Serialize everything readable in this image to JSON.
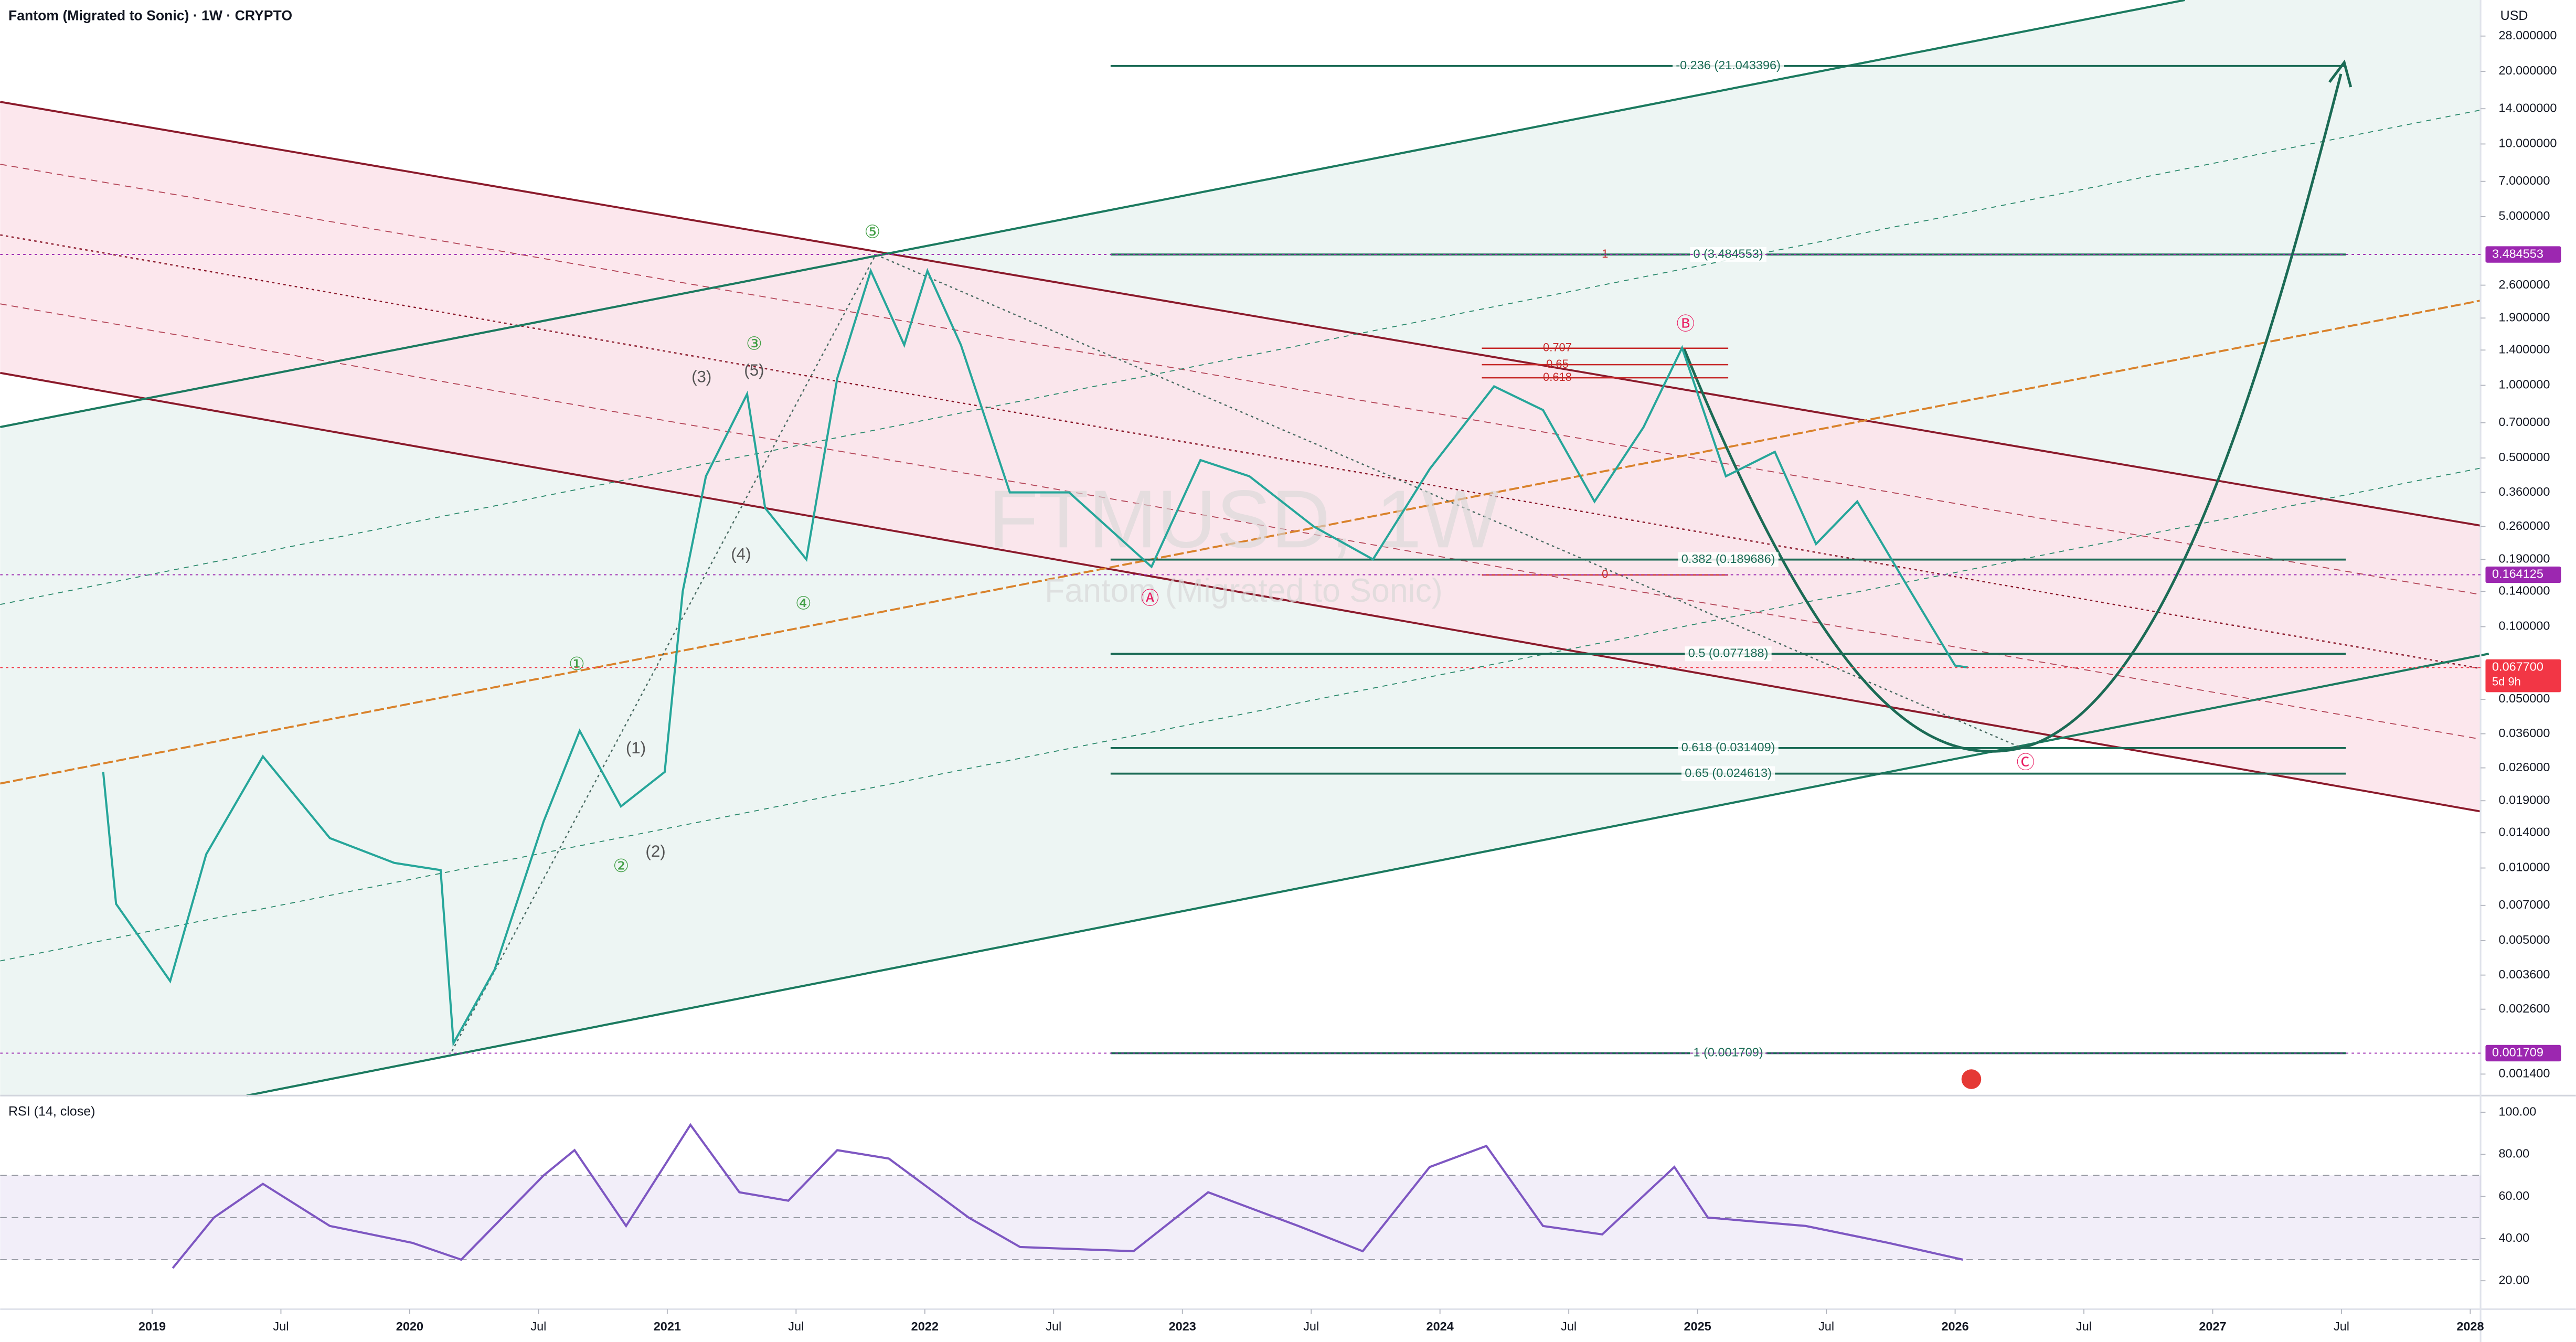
{
  "chart_data": [
    {
      "type": "line",
      "title": "Fantom (Migrated to Sonic) · 1W · CRYPTO",
      "y_label": "USD",
      "log_y": true,
      "watermark": "FTMUSD, 1W",
      "watermark_subtitle": "Fantom (Migrated to Sonic)",
      "xlim": [
        2018.41,
        2028.04
      ],
      "ylim": [
        0.00114,
        39.5
      ],
      "xticks": [
        {
          "value": 2019,
          "label": "2019"
        },
        {
          "value": 2019.5,
          "label": "Jul"
        },
        {
          "value": 2020,
          "label": "2020"
        },
        {
          "value": 2020.5,
          "label": "Jul"
        },
        {
          "value": 2021,
          "label": "2021"
        },
        {
          "value": 2021.5,
          "label": "Jul"
        },
        {
          "value": 2022,
          "label": "2022"
        },
        {
          "value": 2022.5,
          "label": "Jul"
        },
        {
          "value": 2023,
          "label": "2023"
        },
        {
          "value": 2023.5,
          "label": "Jul"
        },
        {
          "value": 2024,
          "label": "2024"
        },
        {
          "value": 2024.5,
          "label": "Jul"
        },
        {
          "value": 2025,
          "label": "2025"
        },
        {
          "value": 2025.5,
          "label": "Jul"
        },
        {
          "value": 2026,
          "label": "2026"
        },
        {
          "value": 2026.5,
          "label": "Jul"
        },
        {
          "value": 2027,
          "label": "2027"
        },
        {
          "value": 2027.5,
          "label": "Jul"
        },
        {
          "value": 2028,
          "label": "2028"
        }
      ],
      "yticks": [
        {
          "value": 28,
          "label": "28.000000"
        },
        {
          "value": 20,
          "label": "20.000000"
        },
        {
          "value": 14,
          "label": "14.000000"
        },
        {
          "value": 10,
          "label": "10.000000"
        },
        {
          "value": 7,
          "label": "7.000000"
        },
        {
          "value": 5,
          "label": "5.000000"
        },
        {
          "value": 2.6,
          "label": "2.600000"
        },
        {
          "value": 1.9,
          "label": "1.900000"
        },
        {
          "value": 1.4,
          "label": "1.400000"
        },
        {
          "value": 1,
          "label": "1.000000"
        },
        {
          "value": 0.7,
          "label": "0.700000"
        },
        {
          "value": 0.5,
          "label": "0.500000"
        },
        {
          "value": 0.36,
          "label": "0.360000"
        },
        {
          "value": 0.26,
          "label": "0.260000"
        },
        {
          "value": 0.19,
          "label": "0.190000"
        },
        {
          "value": 0.14,
          "label": "0.140000"
        },
        {
          "value": 0.1,
          "label": "0.100000"
        },
        {
          "value": 0.05,
          "label": "0.050000"
        },
        {
          "value": 0.036,
          "label": "0.036000"
        },
        {
          "value": 0.026,
          "label": "0.026000"
        },
        {
          "value": 0.019,
          "label": "0.019000"
        },
        {
          "value": 0.014,
          "label": "0.014000"
        },
        {
          "value": 0.01,
          "label": "0.010000"
        },
        {
          "value": 0.007,
          "label": "0.007000"
        },
        {
          "value": 0.005,
          "label": "0.005000"
        },
        {
          "value": 0.0036,
          "label": "0.003600"
        },
        {
          "value": 0.0026,
          "label": "0.002600"
        },
        {
          "value": 0.0014,
          "label": "0.001400"
        }
      ],
      "x": [
        2018.81,
        2018.86,
        2019.07,
        2019.21,
        2019.43,
        2019.69,
        2019.94,
        2020.12,
        2020.17,
        2020.33,
        2020.52,
        2020.66,
        2020.82,
        2020.99,
        2021.06,
        2021.15,
        2021.31,
        2021.38,
        2021.54,
        2021.66,
        2021.79,
        2021.92,
        2022.01,
        2022.14,
        2022.33,
        2022.56,
        2022.88,
        2023.07,
        2023.26,
        2023.51,
        2023.74,
        2023.96,
        2024.21,
        2024.4,
        2024.6,
        2024.79,
        2024.94,
        2025.11,
        2025.3,
        2025.46,
        2025.62,
        2025.81,
        2026.0,
        2026.05
      ],
      "series": [
        {
          "name": "FTMUSD",
          "color": "#26a69a",
          "values": [
            0.025,
            0.0071,
            0.0034,
            0.0114,
            0.029,
            0.0133,
            0.0105,
            0.0098,
            0.00188,
            0.0038,
            0.0156,
            0.037,
            0.018,
            0.025,
            0.14,
            0.42,
            0.92,
            0.31,
            0.19,
            1.07,
            2.98,
            1.47,
            2.98,
            1.47,
            0.36,
            0.36,
            0.177,
            0.49,
            0.42,
            0.26,
            0.19,
            0.45,
            0.99,
            0.79,
            0.33,
            0.67,
            1.43,
            0.42,
            0.53,
            0.22,
            0.33,
            0.15,
            0.069,
            0.0677
          ]
        }
      ],
      "fib_levels": [
        {
          "label": "-0.236 (21.043396)",
          "value": 21.043396
        },
        {
          "label": "0 (3.484553)",
          "value": 3.484553
        },
        {
          "label": "0.382 (0.189686)",
          "value": 0.189686
        },
        {
          "label": "0.5 (0.077188)",
          "value": 0.077188
        },
        {
          "label": "0.618 (0.031409)",
          "value": 0.031409
        },
        {
          "label": "0.65 (0.024613)",
          "value": 0.024613
        },
        {
          "label": "1 (0.001709)",
          "value": 0.001709
        }
      ],
      "small_fib_labels": [
        "0.707",
        "0.65",
        "0.618",
        "1",
        "0"
      ],
      "price_labels": [
        {
          "value": 3.484553,
          "label": "3.484553",
          "color": "#9c27b0"
        },
        {
          "value": 0.164125,
          "label": "0.164125",
          "color": "#9c27b0"
        },
        {
          "value": 0.0677,
          "label": "0.067700",
          "color": "#f23645"
        },
        {
          "value": 0.001709,
          "label": "0.001709",
          "color": "#9c27b0"
        }
      ],
      "countdown": "5d 9h",
      "wave_labels": [
        "⑤",
        "③",
        "①",
        "②",
        "④",
        "(1)",
        "(2)",
        "(3)",
        "(4)",
        "(5)",
        "Ⓐ",
        "Ⓑ",
        "Ⓒ"
      ]
    },
    {
      "type": "line",
      "title": "RSI (14, close)",
      "xlim": [
        2018.41,
        2028.04
      ],
      "ylim": [
        6.5,
        107.9
      ],
      "yticks": [
        {
          "value": 100,
          "label": "100.00"
        },
        {
          "value": 80,
          "label": "80.00"
        },
        {
          "value": 60,
          "label": "60.00"
        },
        {
          "value": 40,
          "label": "40.00"
        },
        {
          "value": 20,
          "label": "20.00"
        }
      ],
      "levels": [
        70,
        50,
        30
      ],
      "x": [
        2019.08,
        2019.24,
        2019.43,
        2019.69,
        2020.01,
        2020.2,
        2020.52,
        2020.64,
        2020.84,
        2021.09,
        2021.28,
        2021.47,
        2021.66,
        2021.86,
        2022.17,
        2022.37,
        2022.81,
        2023.1,
        2023.45,
        2023.7,
        2023.96,
        2024.18,
        2024.4,
        2024.63,
        2024.91,
        2025.04,
        2025.42,
        2025.74,
        2026.03
      ],
      "series": [
        {
          "name": "RSI",
          "color": "#7e57c2",
          "values": [
            26,
            50,
            66,
            46,
            38,
            30,
            70,
            82,
            46,
            94,
            62,
            58,
            82,
            78,
            50,
            36,
            34,
            62,
            46,
            34,
            74,
            84,
            46,
            42,
            74,
            50,
            46,
            38,
            30
          ]
        }
      ]
    }
  ]
}
